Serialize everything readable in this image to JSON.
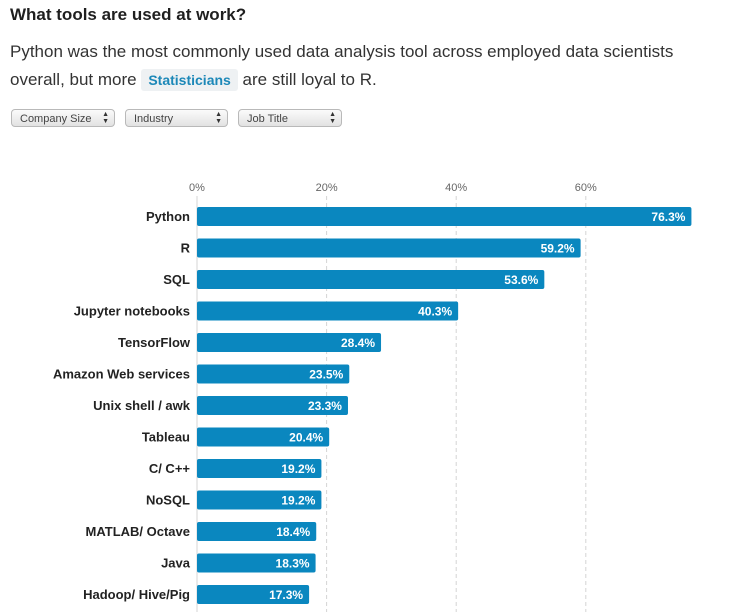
{
  "header": {
    "title": "What tools are used at work?",
    "subtitle_before": "Python was the most commonly used data analysis tool across employed data scientists overall, but more ",
    "highlight": "Statisticians",
    "subtitle_after": " are still loyal to R."
  },
  "filters": [
    {
      "label": "Company Size"
    },
    {
      "label": "Industry"
    },
    {
      "label": "Job Title"
    }
  ],
  "colors": {
    "bar": "#0a87bf",
    "grid": "#d4d4d4",
    "axis": "#666666"
  },
  "chart_data": {
    "type": "bar",
    "orientation": "horizontal",
    "categories": [
      "Python",
      "R",
      "SQL",
      "Jupyter notebooks",
      "TensorFlow",
      "Amazon Web services",
      "Unix shell / awk",
      "Tableau",
      "C/ C++",
      "NoSQL",
      "MATLAB/ Octave",
      "Java",
      "Hadoop/ Hive/Pig"
    ],
    "values": [
      76.3,
      59.2,
      53.6,
      40.3,
      28.4,
      23.5,
      23.3,
      20.4,
      19.2,
      19.2,
      18.4,
      18.3,
      17.3
    ],
    "value_labels": [
      "76.3%",
      "59.2%",
      "53.6%",
      "40.3%",
      "28.4%",
      "23.5%",
      "23.3%",
      "20.4%",
      "19.2%",
      "19.2%",
      "18.4%",
      "18.3%",
      "17.3%"
    ],
    "ticks": [
      0,
      20,
      40,
      60
    ],
    "tick_labels": [
      "0%",
      "20%",
      "40%",
      "60%"
    ],
    "xlim": [
      0,
      80
    ],
    "grid": true
  }
}
